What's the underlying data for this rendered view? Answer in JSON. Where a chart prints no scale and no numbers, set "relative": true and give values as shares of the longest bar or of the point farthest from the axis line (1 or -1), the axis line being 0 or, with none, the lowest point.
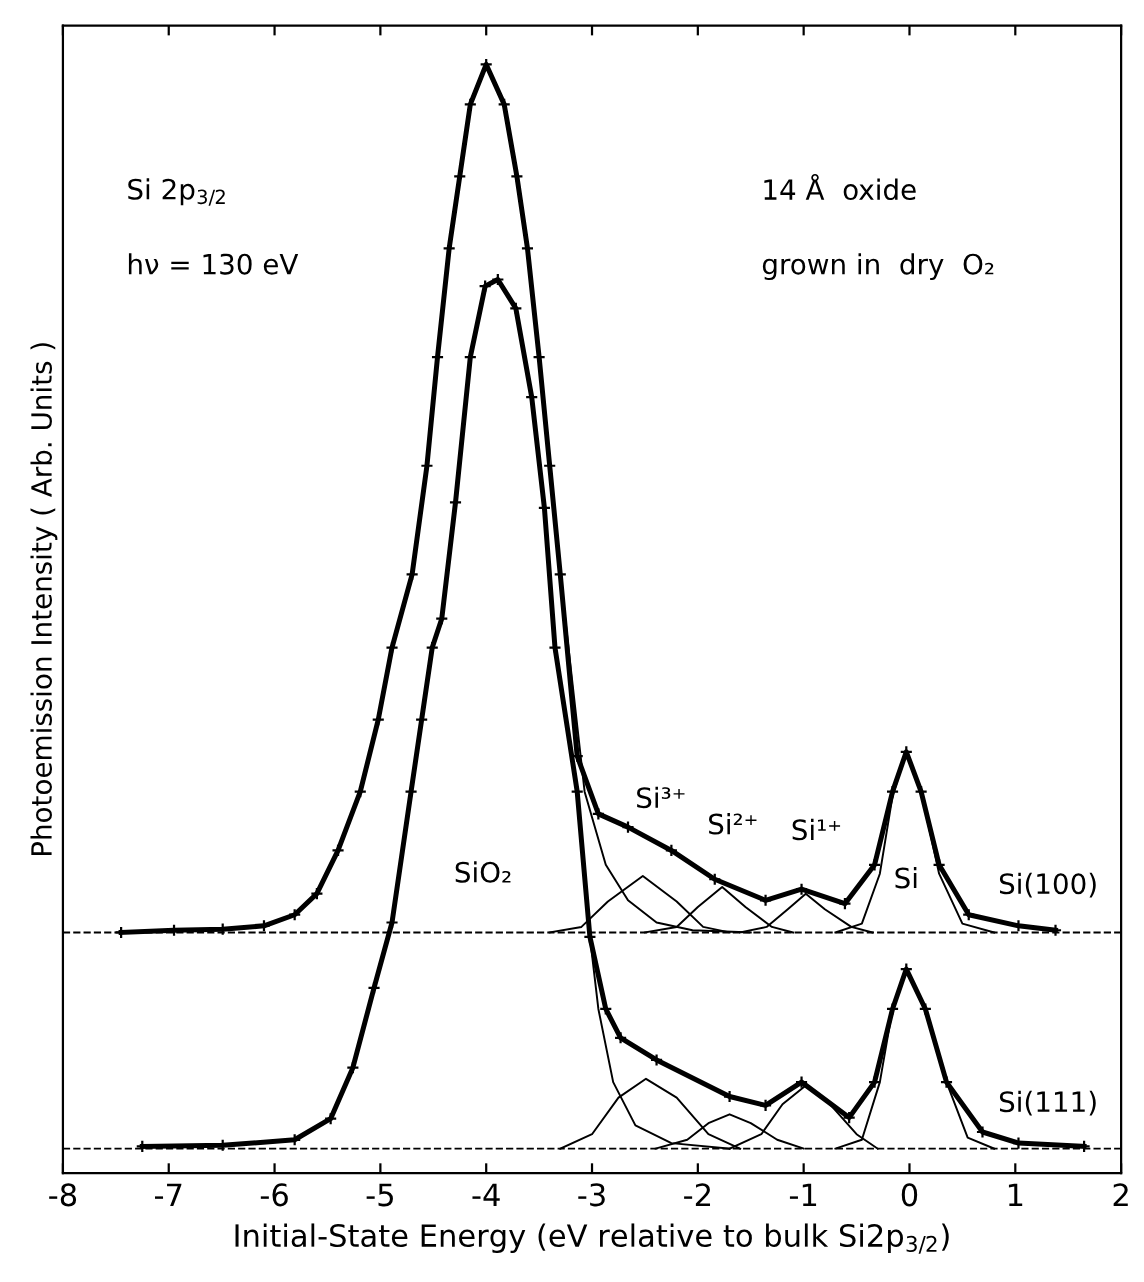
{
  "chart_data": {
    "type": "line",
    "relative": true,
    "xlabel": "Initial-State Energy (eV relative to bulk Si2p$_{3/2}$)",
    "ylabel": "Photoemission Intensity ( Arb. Units )",
    "xlim": [
      -8,
      2
    ],
    "xticks": [
      -8,
      -7,
      -6,
      -5,
      -4,
      -3,
      -2,
      -1,
      0,
      1,
      2
    ],
    "tick_labels": "x",
    "grid": false,
    "legend": false,
    "ref_lines": [
      {
        "axis": "y",
        "value": 0.217,
        "color": "#000000",
        "line_style": "dashed"
      },
      {
        "axis": "y",
        "value": 0.022,
        "color": "#000000",
        "line_style": "dashed"
      }
    ],
    "series": [
      {
        "color": "#000000",
        "marker": "cross",
        "x": [
          -7.45,
          -6.95,
          -6.49,
          -6.1,
          -5.81,
          -5.6,
          -5.4,
          -5.19,
          -5.02,
          -4.89,
          -4.7,
          -4.56,
          -4.46,
          -4.35,
          -4.25,
          -4.15,
          -4.0,
          -3.83,
          -3.71,
          -3.61,
          -3.5,
          -3.4,
          -3.3,
          -3.14,
          -2.94,
          -2.66,
          -2.25,
          -1.84,
          -1.36,
          -1.02,
          -0.61,
          -0.33,
          -0.16,
          -0.03,
          0.11,
          0.28,
          0.56,
          1.03,
          1.38
        ],
        "values": [
          0.217,
          0.219,
          0.22,
          0.223,
          0.233,
          0.252,
          0.291,
          0.344,
          0.409,
          0.474,
          0.54,
          0.638,
          0.736,
          0.834,
          0.899,
          0.964,
          1.0,
          0.964,
          0.899,
          0.834,
          0.736,
          0.638,
          0.54,
          0.376,
          0.324,
          0.312,
          0.291,
          0.265,
          0.246,
          0.256,
          0.243,
          0.278,
          0.344,
          0.38,
          0.344,
          0.278,
          0.233,
          0.223,
          0.219
        ]
      },
      {
        "color": "#000000",
        "marker": "cross",
        "x": [
          -7.25,
          -6.49,
          -5.81,
          -5.47,
          -5.26,
          -5.06,
          -4.89,
          -4.71,
          -4.61,
          -4.51,
          -4.42,
          -4.29,
          -4.15,
          -4.01,
          -3.89,
          -3.72,
          -3.57,
          -3.45,
          -3.35,
          -3.14,
          -3.02,
          -2.87,
          -2.73,
          -2.39,
          -1.7,
          -1.36,
          -1.02,
          -0.57,
          -0.33,
          -0.16,
          -0.03,
          0.15,
          0.35,
          0.69,
          1.03,
          1.65
        ],
        "values": [
          0.024,
          0.025,
          0.03,
          0.049,
          0.095,
          0.167,
          0.226,
          0.344,
          0.409,
          0.474,
          0.5,
          0.605,
          0.736,
          0.8,
          0.806,
          0.78,
          0.7,
          0.6,
          0.474,
          0.344,
          0.213,
          0.148,
          0.122,
          0.102,
          0.069,
          0.061,
          0.082,
          0.05,
          0.082,
          0.148,
          0.184,
          0.148,
          0.082,
          0.037,
          0.027,
          0.024
        ]
      },
      {
        "color": "#000000",
        "marker": "none",
        "x": [
          -5.6,
          -5.4,
          -5.19,
          -5.02,
          -4.89,
          -4.7,
          -4.56,
          -4.46,
          -4.35,
          -4.25,
          -4.15,
          -4.0,
          -3.83,
          -3.71,
          -3.61,
          -3.5,
          -3.4,
          -3.3,
          -3.07,
          -2.87,
          -2.66,
          -2.39,
          -2.05,
          -1.5
        ],
        "values": [
          0.252,
          0.291,
          0.344,
          0.409,
          0.474,
          0.54,
          0.638,
          0.736,
          0.834,
          0.899,
          0.964,
          1.0,
          0.964,
          0.899,
          0.834,
          0.736,
          0.638,
          0.54,
          0.344,
          0.278,
          0.246,
          0.226,
          0.219,
          0.217
        ]
      },
      {
        "color": "#000000",
        "marker": "none",
        "x": [
          -3.4,
          -3.1,
          -2.85,
          -2.52,
          -2.2,
          -1.95,
          -1.7
        ],
        "values": [
          0.217,
          0.222,
          0.245,
          0.268,
          0.245,
          0.222,
          0.217
        ]
      },
      {
        "color": "#000000",
        "marker": "none",
        "x": [
          -2.5,
          -2.2,
          -2.0,
          -1.77,
          -1.55,
          -1.3,
          -1.1
        ],
        "values": [
          0.217,
          0.222,
          0.24,
          0.258,
          0.24,
          0.222,
          0.217
        ]
      },
      {
        "color": "#000000",
        "marker": "none",
        "x": [
          -1.6,
          -1.35,
          -1.15,
          -0.98,
          -0.8,
          -0.55,
          -0.35
        ],
        "values": [
          0.217,
          0.222,
          0.238,
          0.252,
          0.238,
          0.222,
          0.217
        ]
      },
      {
        "color": "#000000",
        "marker": "none",
        "x": [
          -0.7,
          -0.45,
          -0.28,
          -0.16,
          -0.03,
          0.11,
          0.28,
          0.5,
          0.8
        ],
        "values": [
          0.217,
          0.225,
          0.27,
          0.34,
          0.38,
          0.344,
          0.27,
          0.225,
          0.217
        ]
      },
      {
        "color": "#000000",
        "marker": "none",
        "x": [
          -5.47,
          -5.26,
          -5.06,
          -4.89,
          -4.71,
          -4.61,
          -4.51,
          -4.42,
          -4.29,
          -4.15,
          -4.01,
          -3.89,
          -3.72,
          -3.57,
          -3.45,
          -3.35,
          -3.14,
          -3.02,
          -2.94,
          -2.8,
          -2.59,
          -2.25,
          -1.7
        ],
        "values": [
          0.049,
          0.095,
          0.167,
          0.226,
          0.344,
          0.409,
          0.474,
          0.5,
          0.605,
          0.736,
          0.8,
          0.806,
          0.78,
          0.7,
          0.6,
          0.474,
          0.344,
          0.213,
          0.148,
          0.082,
          0.043,
          0.027,
          0.022
        ]
      },
      {
        "color": "#000000",
        "marker": "none",
        "x": [
          -3.3,
          -3.0,
          -2.75,
          -2.49,
          -2.2,
          -1.9,
          -1.6
        ],
        "values": [
          0.022,
          0.035,
          0.068,
          0.085,
          0.068,
          0.035,
          0.022
        ]
      },
      {
        "color": "#000000",
        "marker": "none",
        "x": [
          -2.4,
          -2.1,
          -1.9,
          -1.7,
          -1.5,
          -1.25,
          -1.0
        ],
        "values": [
          0.022,
          0.03,
          0.045,
          0.053,
          0.045,
          0.03,
          0.022
        ]
      },
      {
        "color": "#000000",
        "marker": "none",
        "x": [
          -1.7,
          -1.4,
          -1.2,
          -0.98,
          -0.75,
          -0.5,
          -0.3
        ],
        "values": [
          0.022,
          0.035,
          0.062,
          0.079,
          0.062,
          0.035,
          0.022
        ]
      },
      {
        "color": "#000000",
        "marker": "none",
        "x": [
          -0.7,
          -0.45,
          -0.28,
          -0.16,
          -0.03,
          0.15,
          0.35,
          0.55,
          0.8
        ],
        "values": [
          0.022,
          0.03,
          0.082,
          0.148,
          0.184,
          0.148,
          0.082,
          0.032,
          0.022
        ]
      }
    ],
    "annotations": [
      "Si 2p$_{3/2}$",
      "hν = 130 eV",
      "14 Å  oxide",
      "grown in  dry  O₂",
      "SiO₂",
      "Si³⁺",
      "Si²⁺",
      "Si¹⁺",
      "Si",
      "Si(100)",
      "Si(111)"
    ]
  }
}
